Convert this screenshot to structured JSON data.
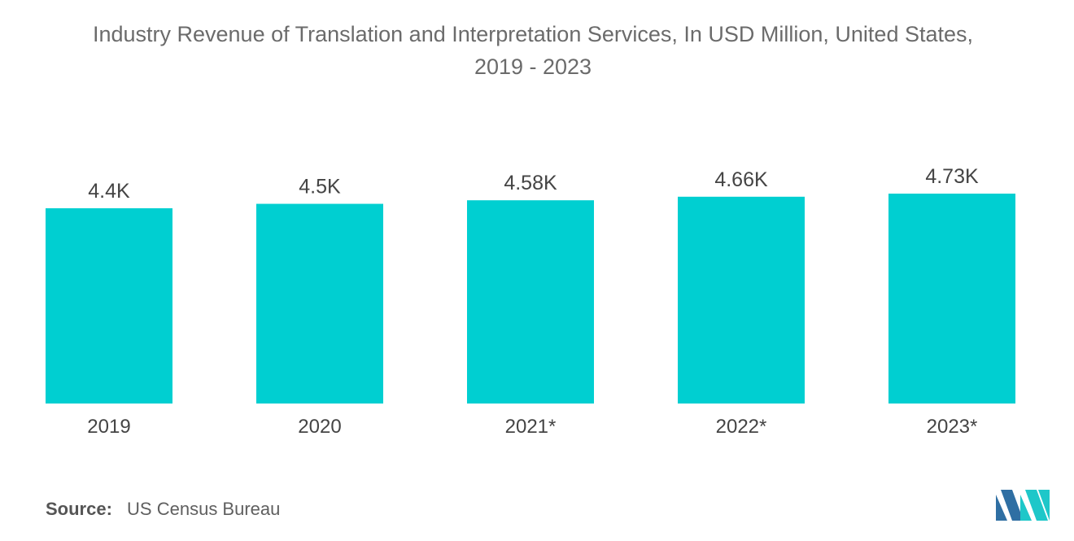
{
  "chart_data": {
    "type": "bar",
    "title": "Industry Revenue of Translation and Interpretation Services, In USD Million, United States,",
    "subtitle": "2019 - 2023",
    "categories": [
      "2019",
      "2020",
      "2021*",
      "2022*",
      "2023*"
    ],
    "values": [
      4400,
      4500,
      4580,
      4660,
      4730
    ],
    "value_labels": [
      "4.4K",
      "4.5K",
      "4.58K",
      "4.66K",
      "4.73K"
    ],
    "xlabel": "",
    "ylabel": "",
    "ylim": [
      0,
      4730
    ],
    "grid": false,
    "legend": "none",
    "bar_color": "#00cfd1"
  },
  "source": {
    "label": "Source:",
    "text": "US Census Bureau"
  },
  "logo": {
    "icon": "mordor-intelligence-logo-icon",
    "colors": [
      "#2f6fa3",
      "#1ec7c9"
    ]
  }
}
